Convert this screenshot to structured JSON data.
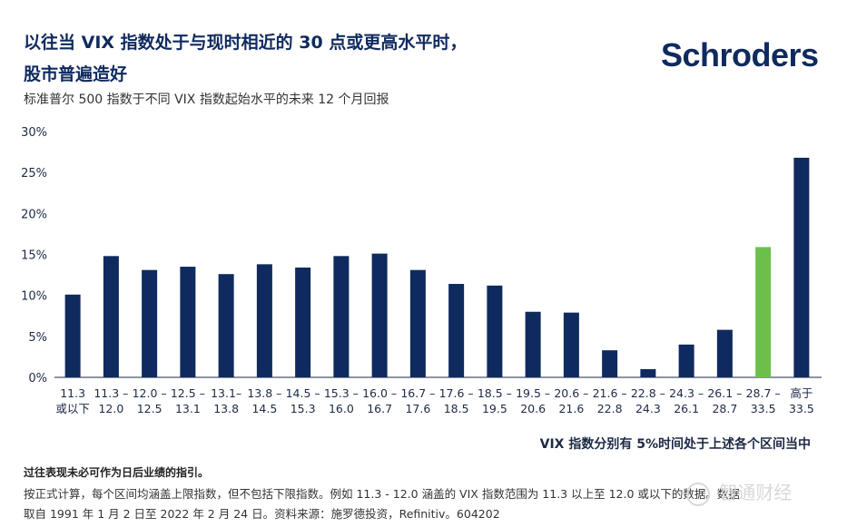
{
  "header": {
    "title_line1": "以往当 VIX 指数处于与现时相近的 30 点或更高水平时，",
    "title_line2": "股市普遍造好",
    "logo": "Schroders",
    "subtitle": "标准普尔 500 指数于不同 VIX 指数起始水平的未来 12 个月回报"
  },
  "chart_data": {
    "type": "bar",
    "categories": [
      [
        "11.3",
        "或以下"
      ],
      [
        "11.3 –",
        "12.0"
      ],
      [
        "12.0 –",
        "12.5"
      ],
      [
        "12.5 –",
        "13.1"
      ],
      [
        "13.1–",
        "13.8"
      ],
      [
        "13.8 –",
        "14.5"
      ],
      [
        "14.5 –",
        "15.3"
      ],
      [
        "15.3 –",
        "16.0"
      ],
      [
        "16.0 –",
        "16.7"
      ],
      [
        "16.7 –",
        "17.6"
      ],
      [
        "17.6 –",
        "18.5"
      ],
      [
        "18.5 –",
        "19.5"
      ],
      [
        "19.5 –",
        "20.6"
      ],
      [
        "20.6 –",
        "21.6"
      ],
      [
        "21.6 –",
        "22.8"
      ],
      [
        "22.8 –",
        "24.3"
      ],
      [
        "24.3 –",
        "26.1"
      ],
      [
        "26.1 –",
        "28.7"
      ],
      [
        "28.7 –",
        "33.5"
      ],
      [
        "高于",
        "33.5"
      ]
    ],
    "values": [
      10.1,
      14.8,
      13.1,
      13.5,
      12.6,
      13.8,
      13.4,
      14.8,
      15.1,
      13.1,
      11.4,
      11.2,
      8.0,
      7.9,
      3.3,
      1.0,
      4.0,
      5.8,
      15.9,
      26.8
    ],
    "highlight_index": 18,
    "ylim": [
      0,
      30
    ],
    "yticks": [
      0,
      5,
      10,
      15,
      20,
      25,
      30
    ],
    "ytick_labels": [
      "0%",
      "5%",
      "10%",
      "15%",
      "20%",
      "25%",
      "30%"
    ],
    "grid": false,
    "colors": {
      "bar": "#0f2a5e",
      "highlight": "#6cc04a"
    }
  },
  "notes": {
    "vix_note": "VIX 指数分别有 5%时间处于上述各个区间当中",
    "disclaimer": "过往表现未必可作为日后业绩的指引。",
    "footnote_line1": "按正式计算，每个区间均涵盖上限指数，但不包括下限指数。例如 11.3 - 12.0 涵盖的 VIX 指数范围为 11.3 以上至 12.0 或以下的数据。数据",
    "footnote_line2": "取自 1991 年 1 月 2 日至 2022 年 2 月 24 日。资料来源：施罗德投资，Refinitiv。604202"
  },
  "watermark": {
    "text": "智通财经"
  }
}
